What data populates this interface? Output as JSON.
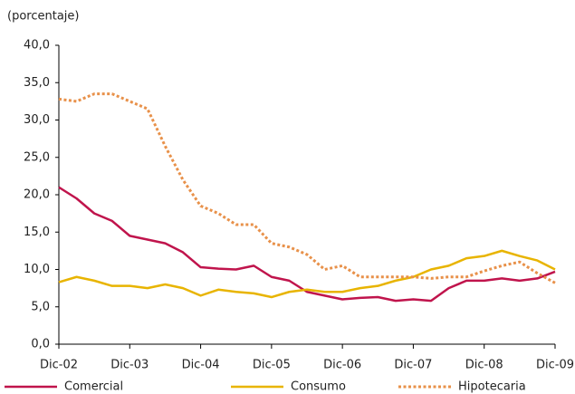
{
  "chart_data": {
    "type": "line",
    "ylabel": "(porcentaje)",
    "categories": [
      "Dic-02",
      null,
      null,
      null,
      "Dic-03",
      null,
      null,
      null,
      "Dic-04",
      null,
      null,
      null,
      "Dic-05",
      null,
      null,
      null,
      "Dic-06",
      null,
      null,
      null,
      "Dic-07",
      null,
      null,
      null,
      "Dic-08",
      null,
      null,
      null,
      "Dic-09"
    ],
    "series": [
      {
        "name": "Comercial",
        "color": "#c0144c",
        "style": "solid",
        "values": [
          21.0,
          19.5,
          17.5,
          16.5,
          14.5,
          14.0,
          13.5,
          12.3,
          10.3,
          10.1,
          10.0,
          10.5,
          9.0,
          8.5,
          7.0,
          6.5,
          6.0,
          6.2,
          6.3,
          5.8,
          6.0,
          5.8,
          7.5,
          8.5,
          8.5,
          8.8,
          8.5,
          8.8,
          9.7
        ]
      },
      {
        "name": "Consumo",
        "color": "#e8b400",
        "style": "solid",
        "values": [
          8.3,
          9.0,
          8.5,
          7.8,
          7.8,
          7.5,
          8.0,
          7.5,
          6.5,
          7.3,
          7.0,
          6.8,
          6.3,
          7.0,
          7.3,
          7.0,
          7.0,
          7.5,
          7.8,
          8.5,
          9.0,
          10.0,
          10.5,
          11.5,
          11.8,
          12.5,
          11.8,
          11.2,
          10.0
        ]
      },
      {
        "name": "Hipotecaria",
        "color": "#e8914a",
        "style": "dotted",
        "values": [
          32.8,
          32.5,
          33.5,
          33.5,
          32.5,
          31.5,
          26.5,
          22.0,
          18.5,
          17.5,
          16.0,
          16.0,
          13.5,
          13.0,
          12.0,
          10.0,
          10.5,
          9.0,
          9.0,
          9.0,
          9.0,
          8.8,
          9.0,
          9.0,
          9.8,
          10.5,
          11.0,
          9.5,
          8.2
        ]
      }
    ],
    "ylim": [
      0,
      40
    ],
    "yticks": [
      {
        "value": 0,
        "label": "0,0"
      },
      {
        "value": 5,
        "label": "5,0"
      },
      {
        "value": 10,
        "label": "10,0"
      },
      {
        "value": 15,
        "label": "15,0"
      },
      {
        "value": 20,
        "label": "20,0"
      },
      {
        "value": 25,
        "label": "25,0"
      },
      {
        "value": 30,
        "label": "30,0"
      },
      {
        "value": 35,
        "label": "35,0"
      },
      {
        "value": 40,
        "label": "40,0"
      }
    ],
    "grid": false,
    "legend": "bottom"
  }
}
